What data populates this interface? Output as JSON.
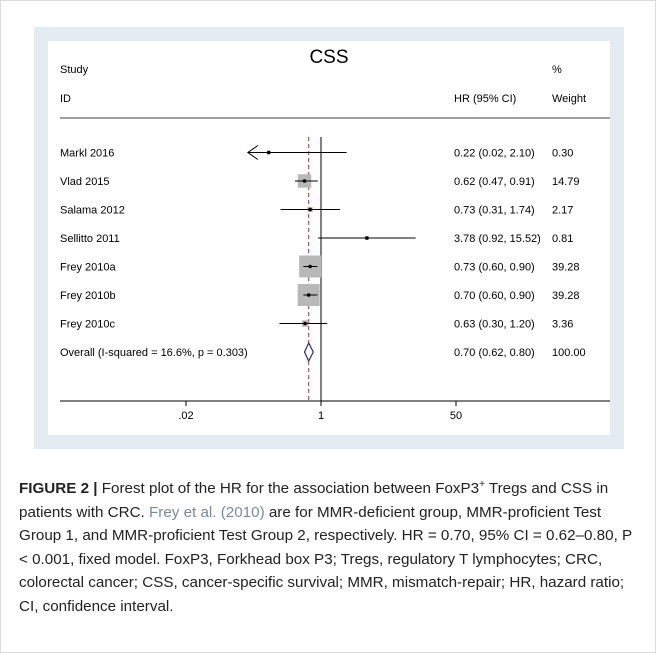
{
  "chart_data": {
    "type": "forest",
    "title": "CSS",
    "columns": {
      "study_line1": "Study",
      "study_line2": "ID",
      "hr": "HR (95% CI)",
      "weight_line1": "%",
      "weight_line2": "Weight"
    },
    "log_scale": true,
    "null_value": 1,
    "overall_line": 0.7,
    "x_ticks": [
      ".02",
      "1",
      "50"
    ],
    "x_tick_values": [
      0.02,
      1,
      50
    ],
    "xlim": [
      0.02,
      50
    ],
    "studies": [
      {
        "label": "Markl 2016",
        "hr": 0.22,
        "lo": 0.02,
        "hi": 2.1,
        "hr_text": "0.22 (0.02, 2.10)",
        "weight_text": "0.30",
        "weight": 0.3,
        "arrow_left": true
      },
      {
        "label": "Vlad 2015",
        "hr": 0.62,
        "lo": 0.47,
        "hi": 0.91,
        "hr_text": "0.62 (0.47, 0.91)",
        "weight_text": "14.79",
        "weight": 14.79
      },
      {
        "label": "Salama 2012",
        "hr": 0.73,
        "lo": 0.31,
        "hi": 1.74,
        "hr_text": "0.73 (0.31, 1.74)",
        "weight_text": "2.17",
        "weight": 2.17
      },
      {
        "label": "Sellitto 2011",
        "hr": 3.78,
        "lo": 0.92,
        "hi": 15.52,
        "hr_text": "3.78 (0.92, 15.52)",
        "weight_text": "0.81",
        "weight": 0.81
      },
      {
        "label": "Frey 2010a",
        "hr": 0.73,
        "lo": 0.6,
        "hi": 0.9,
        "hr_text": "0.73 (0.60, 0.90)",
        "weight_text": "39.28",
        "weight": 39.28
      },
      {
        "label": "Frey 2010b",
        "hr": 0.7,
        "lo": 0.6,
        "hi": 0.9,
        "hr_text": "0.70 (0.60, 0.90)",
        "weight_text": "39.28",
        "weight": 39.28
      },
      {
        "label": "Frey 2010c",
        "hr": 0.63,
        "lo": 0.3,
        "hi": 1.2,
        "hr_text": "0.63 (0.30, 1.20)",
        "weight_text": "3.36",
        "weight": 3.36
      }
    ],
    "overall": {
      "label": "Overall  (I-squared = 16.6%, p = 0.303)",
      "hr": 0.7,
      "lo": 0.62,
      "hi": 0.8,
      "hr_text": "0.70 (0.62, 0.80)",
      "weight_text": "100.00"
    },
    "colors": {
      "box": "#b8b8b8",
      "line": "#000000",
      "overall_ref": "#c0272d",
      "diamond": "#2b2a7a",
      "outer_bg": "#e3ecf0"
    }
  },
  "caption": {
    "lead": "FIGURE 2 |",
    "text_1": " Forest plot of the HR for the association between FoxP3",
    "sup": "+",
    "text_2": " Tregs and CSS in patients with CRC. ",
    "cite": "Frey et al. (2010)",
    "text_3": " are for MMR-deficient group, MMR-proficient Test Group 1, and MMR-proficient Test Group 2, respectively. HR = 0.70, 95% CI = 0.62–0.80, P < 0.001, fixed model. FoxP3, Forkhead box P3; Tregs, regulatory T lymphocytes; CRC, colorectal cancer; CSS, cancer-specific survival; MMR, mismatch-repair; HR, hazard ratio; CI, confidence interval."
  }
}
